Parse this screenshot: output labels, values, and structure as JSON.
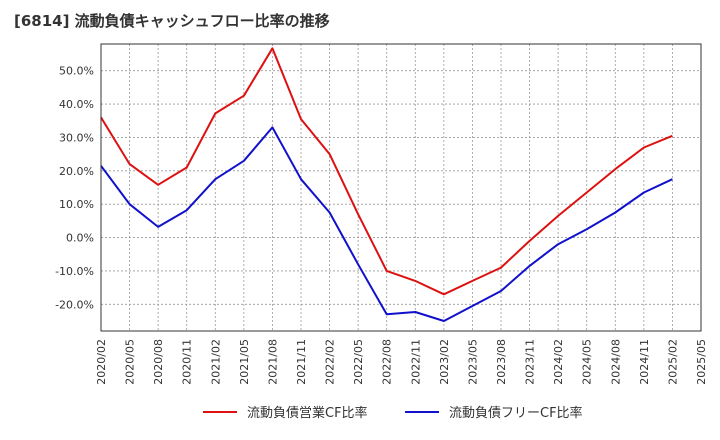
{
  "title": "[6814]  流動負債キャッシュフロー比率の推移",
  "chart_data": {
    "type": "line",
    "title": "[6814]  流動負債キャッシュフロー比率の推移",
    "xlabel": "",
    "ylabel": "",
    "x": [
      "2020/02",
      "2020/05",
      "2020/08",
      "2020/11",
      "2021/02",
      "2021/05",
      "2021/08",
      "2021/11",
      "2022/02",
      "2022/05",
      "2022/08",
      "2022/11",
      "2023/02",
      "2023/05",
      "2023/08",
      "2023/11",
      "2024/02",
      "2024/05",
      "2024/08",
      "2024/11",
      "2025/02",
      "2025/05"
    ],
    "x_ticks": [
      "2020/02",
      "2020/05",
      "2020/08",
      "2020/11",
      "2021/02",
      "2021/05",
      "2021/08",
      "2021/11",
      "2022/02",
      "2022/05",
      "2022/08",
      "2022/11",
      "2023/02",
      "2023/05",
      "2023/08",
      "2023/11",
      "2024/02",
      "2024/05",
      "2024/08",
      "2024/11",
      "2025/02",
      "2025/05"
    ],
    "y_ticks": [
      "50.0%",
      "40.0%",
      "30.0%",
      "20.0%",
      "10.0%",
      "0.0%",
      "-10.0%",
      "-20.0%"
    ],
    "y_tick_values": [
      50,
      40,
      30,
      20,
      10,
      0,
      -10,
      -20
    ],
    "ylim": [
      -28,
      58
    ],
    "grid": true,
    "legend_position": "bottom",
    "series": [
      {
        "name": "流動負債営業CF比率",
        "color": "#dd1111",
        "values": [
          36.0,
          22.0,
          15.8,
          21.0,
          37.2,
          42.5,
          56.7,
          35.5,
          25.0,
          7.0,
          -10.0,
          -13.0,
          -17.0,
          -13.0,
          -9.0,
          -1.0,
          6.5,
          13.5,
          20.5,
          27.0,
          30.5,
          null
        ]
      },
      {
        "name": "流動負債フリーCF比率",
        "color": "#1111cc",
        "values": [
          21.5,
          10.0,
          3.2,
          8.2,
          17.5,
          23.0,
          33.0,
          17.5,
          7.5,
          -8.0,
          -23.0,
          -22.3,
          -25.0,
          -20.5,
          -16.0,
          -8.5,
          -2.0,
          2.5,
          7.5,
          13.5,
          17.5,
          null
        ]
      }
    ]
  }
}
